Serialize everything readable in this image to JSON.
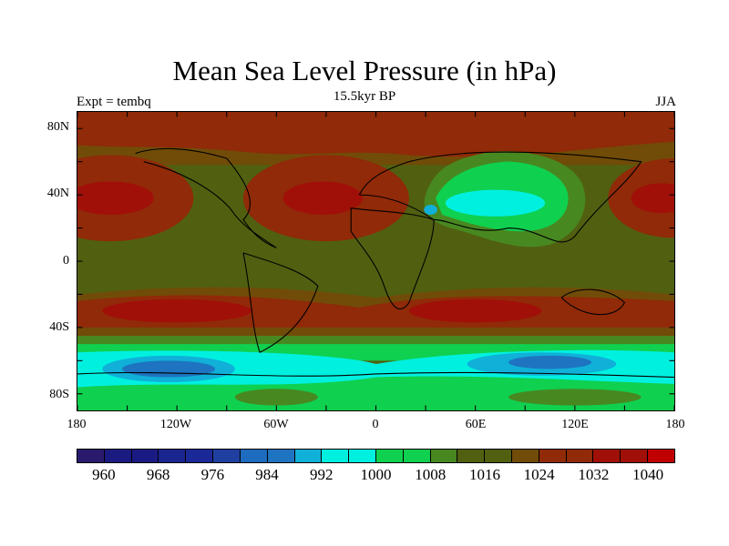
{
  "chart_data": {
    "type": "heatmap",
    "title": "Mean Sea Level Pressure (in hPa)",
    "subtitle": "15.5kyr BP",
    "left_string": "Expt = tembq",
    "right_string": "JJA",
    "xlim": [
      -180,
      180
    ],
    "ylim": [
      -90,
      90
    ],
    "x_ticks": [
      "180",
      "120W",
      "60W",
      "0",
      "60E",
      "120E",
      "180"
    ],
    "y_ticks": [
      "80N",
      "40N",
      "0",
      "40S",
      "80S"
    ],
    "colorbar": {
      "levels_labels": [
        "960",
        "968",
        "976",
        "984",
        "992",
        "1000",
        "1008",
        "1016",
        "1024",
        "1032",
        "1040"
      ],
      "colors": [
        "#2a1a6e",
        "#1a1a80",
        "#1a1a84",
        "#1a2590",
        "#1a2898",
        "#1f40a0",
        "#1e6cc0",
        "#1e74c0",
        "#10b0d8",
        "#00f0e0",
        "#00f0e0",
        "#10d050",
        "#10d050",
        "#488820",
        "#506010",
        "#506010",
        "#704c08",
        "#902a08",
        "#902a08",
        "#a01008",
        "#a01008",
        "#c00000"
      ]
    }
  }
}
